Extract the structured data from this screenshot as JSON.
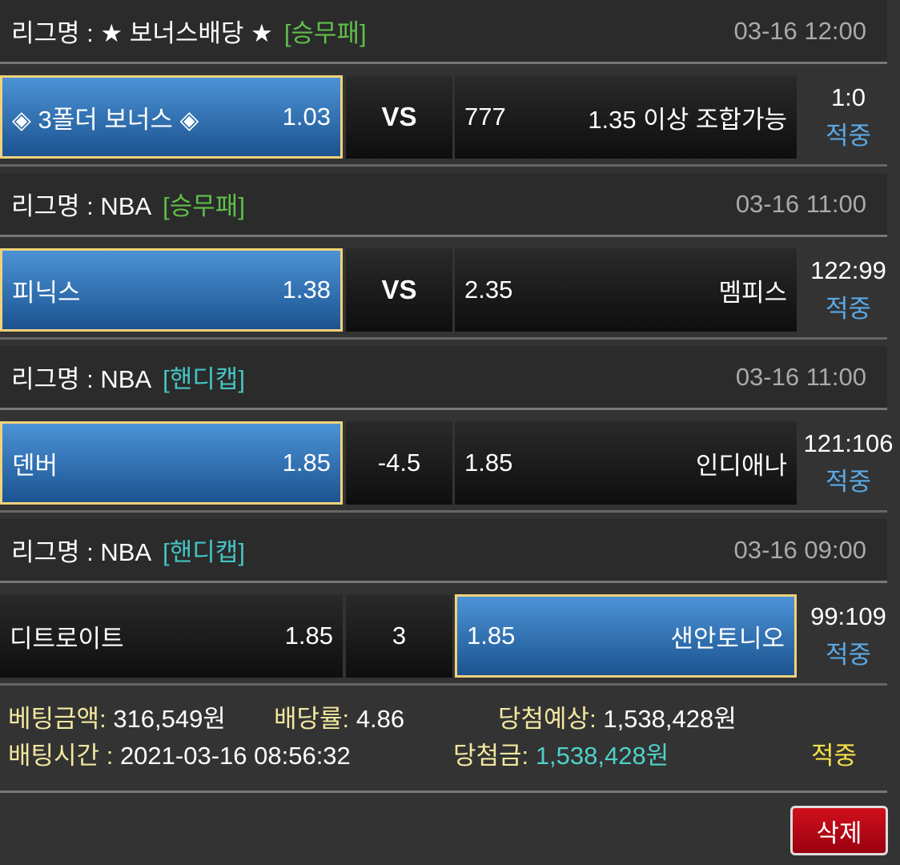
{
  "games": [
    {
      "league": "리그명 : ★ 보너스배당 ★",
      "type": "[승무패]",
      "type_color": "#5fbf4a",
      "time": "03-16 12:00",
      "home": "◈ 3폴더 보너스 ◈",
      "home_odds": "1.03",
      "mid": "VS",
      "away_odds": "777",
      "away": "1.35 이상 조합가능",
      "score": "1:0",
      "status": "적중",
      "selected": "home"
    },
    {
      "league": "리그명 : NBA",
      "type": "[승무패]",
      "type_color": "#5fbf4a",
      "time": "03-16 11:00",
      "home": "피닉스",
      "home_odds": "1.38",
      "mid": "VS",
      "away_odds": "2.35",
      "away": "멤피스",
      "score": "122:99",
      "status": "적중",
      "selected": "home"
    },
    {
      "league": "리그명 : NBA",
      "type": "[핸디캡]",
      "type_color": "#45c4c4",
      "time": "03-16 11:00",
      "home": "덴버",
      "home_odds": "1.85",
      "mid": "-4.5",
      "away_odds": "1.85",
      "away": "인디애나",
      "score": "121:106",
      "status": "적중",
      "selected": "home"
    },
    {
      "league": "리그명 : NBA",
      "type": "[핸디캡]",
      "type_color": "#45c4c4",
      "time": "03-16 09:00",
      "home": "디트로이트",
      "home_odds": "1.85",
      "mid": "3",
      "away_odds": "1.85",
      "away": "샌안토니오",
      "score": "99:109",
      "status": "적중",
      "selected": "away"
    }
  ],
  "summary": {
    "bet_amount_label": "베팅금액:",
    "bet_amount": "316,549원",
    "odds_label": "배당률:",
    "odds": "4.86",
    "expected_label": "당첨예상:",
    "expected": "1,538,428원",
    "bet_time_label": "배팅시간 :",
    "bet_time": "2021-03-16 08:56:32",
    "win_label": "당첨금:",
    "win": "1,538,428원",
    "result": "적중"
  },
  "delete_label": "삭제"
}
